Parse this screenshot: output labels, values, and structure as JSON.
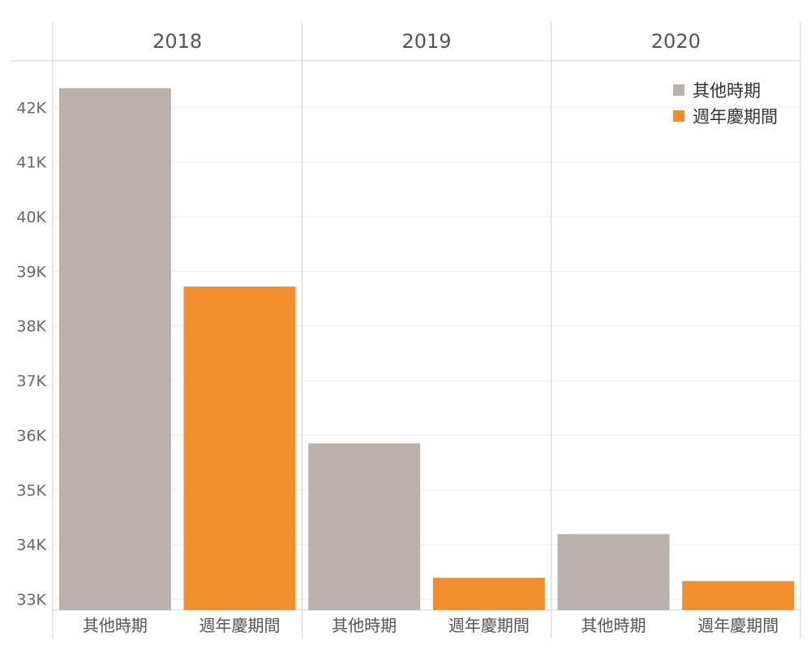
{
  "chart_data": {
    "type": "bar",
    "panels": [
      "2018",
      "2019",
      "2020"
    ],
    "categories": [
      "其他時期",
      "週年慶期間"
    ],
    "series": [
      {
        "panel": "2018",
        "values": [
          42350,
          38720
        ]
      },
      {
        "panel": "2019",
        "values": [
          35850,
          33390
        ]
      },
      {
        "panel": "2020",
        "values": [
          34190,
          33330
        ]
      }
    ],
    "ylim": [
      32800,
      42850
    ],
    "yticks": [
      33000,
      34000,
      35000,
      36000,
      37000,
      38000,
      39000,
      40000,
      41000,
      42000
    ],
    "ytick_labels": [
      "33K",
      "34K",
      "35K",
      "36K",
      "37K",
      "38K",
      "39K",
      "40K",
      "41K",
      "42K"
    ],
    "legend": {
      "placement": "top-right",
      "entries": [
        "其他時期",
        "週年慶期間"
      ]
    },
    "colors": {
      "其他時期": "#bab0ac",
      "週年慶期間": "#f28e2b",
      "gridline": "#eeeeee",
      "divider": "#d0d0d0"
    },
    "grid": true
  }
}
